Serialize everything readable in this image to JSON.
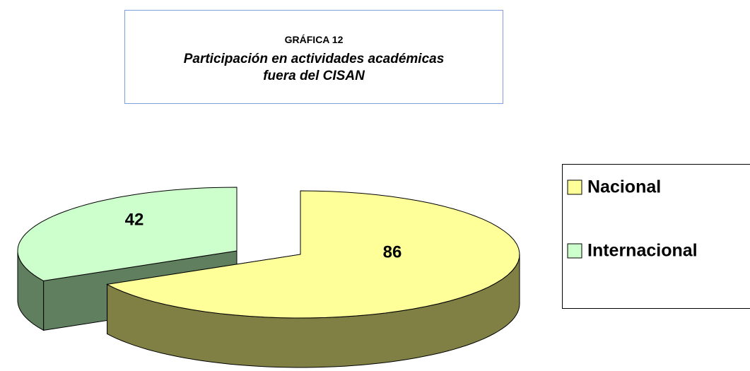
{
  "chart_data": {
    "type": "pie",
    "title": "GRÁFICA 12",
    "subtitle": "Participación en actividades académicas fuera del CISAN",
    "categories": [
      "Nacional",
      "Internacional"
    ],
    "values": [
      86,
      42
    ],
    "colors": [
      "#ffff99",
      "#ccffcc"
    ],
    "side_colors": [
      "#808045",
      "#5f7f5f"
    ],
    "legend": "right"
  }
}
